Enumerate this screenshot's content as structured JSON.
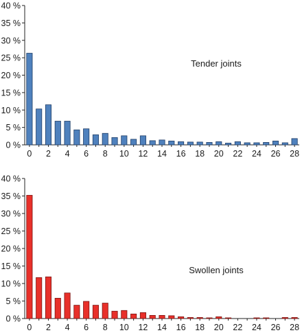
{
  "chart_data": [
    {
      "type": "bar",
      "annotation": "Tender joints",
      "color": "#4f81bd",
      "stroke": "#1f3d66",
      "ylim": [
        0,
        40
      ],
      "yticks": [
        0,
        5,
        10,
        15,
        20,
        25,
        30,
        35,
        40
      ],
      "ytick_labels": [
        "0 %",
        "5 %",
        "10 %",
        "15 %",
        "20 %",
        "25 %",
        "30 %",
        "35 %",
        "40 %"
      ],
      "xtick_labels": [
        "0",
        "2",
        "4",
        "6",
        "8",
        "10",
        "12",
        "14",
        "16",
        "18",
        "20",
        "22",
        "24",
        "26",
        "28"
      ],
      "categories": [
        0,
        1,
        2,
        3,
        4,
        5,
        6,
        7,
        8,
        9,
        10,
        11,
        12,
        13,
        14,
        15,
        16,
        17,
        18,
        19,
        20,
        21,
        22,
        23,
        24,
        25,
        26,
        27,
        28
      ],
      "values": [
        26.3,
        10.3,
        11.5,
        6.8,
        6.8,
        4.3,
        4.6,
        2.9,
        3.3,
        2.1,
        2.6,
        1.6,
        2.6,
        1.2,
        1.4,
        1.1,
        0.9,
        0.8,
        0.8,
        0.7,
        0.9,
        0.5,
        0.9,
        0.6,
        0.6,
        0.7,
        1.1,
        0.6,
        1.8
      ],
      "grid": false
    },
    {
      "type": "bar",
      "annotation": "Swollen joints",
      "color": "#e8302a",
      "stroke": "#7a1411",
      "ylim": [
        0,
        40
      ],
      "yticks": [
        0,
        5,
        10,
        15,
        20,
        25,
        30,
        35,
        40
      ],
      "ytick_labels": [
        "0 %",
        "5 %",
        "10 %",
        "15 %",
        "20 %",
        "25 %",
        "30 %",
        "35 %",
        "40 %"
      ],
      "xtick_labels": [
        "0",
        "2",
        "4",
        "6",
        "8",
        "10",
        "12",
        "14",
        "16",
        "18",
        "20",
        "22",
        "24",
        "26",
        "28"
      ],
      "categories": [
        0,
        1,
        2,
        3,
        4,
        5,
        6,
        7,
        8,
        9,
        10,
        11,
        12,
        13,
        14,
        15,
        16,
        17,
        18,
        19,
        20,
        21,
        22,
        23,
        24,
        25,
        26,
        27,
        28
      ],
      "values": [
        35.2,
        11.7,
        11.9,
        5.8,
        7.3,
        3.8,
        4.9,
        3.8,
        4.4,
        2.1,
        2.3,
        1.3,
        1.7,
        0.9,
        0.9,
        0.8,
        0.5,
        0.3,
        0.3,
        0.2,
        0.5,
        0.2,
        0.0,
        0.0,
        0.2,
        0.2,
        0.0,
        0.3,
        0.3
      ],
      "grid": false
    }
  ]
}
